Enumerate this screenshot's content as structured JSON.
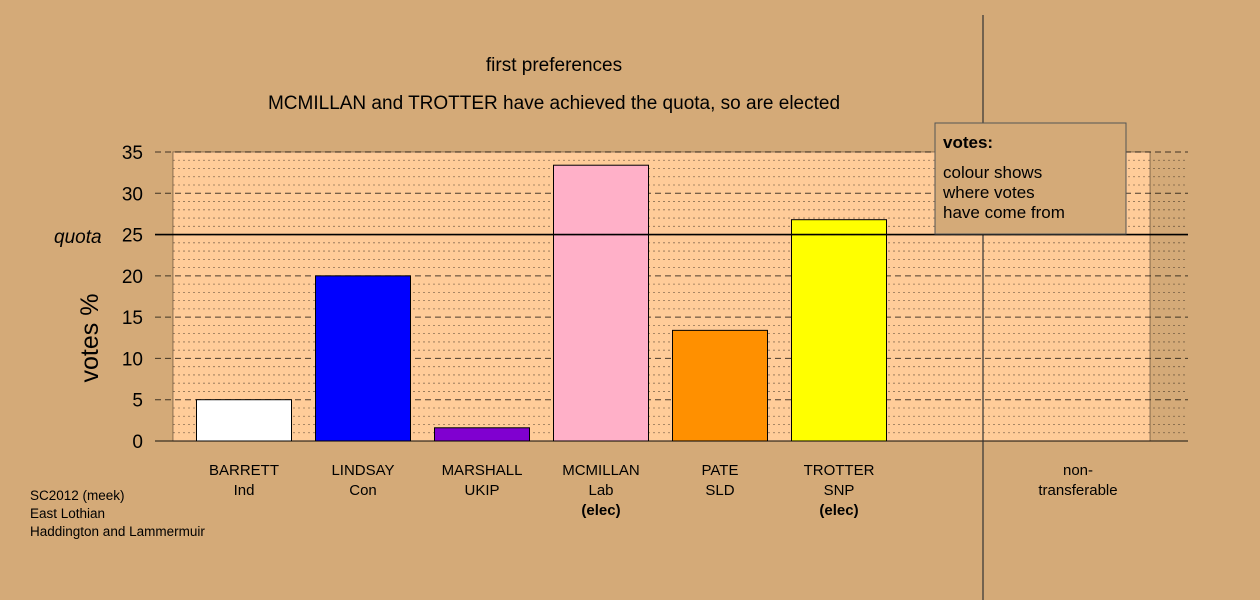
{
  "chart_data": {
    "type": "bar",
    "title": "first preferences",
    "subtitle": "MCMILLAN and TROTTER have achieved the quota, so are elected",
    "ylabel": "votes %",
    "ylim": [
      0,
      35
    ],
    "yticks": [
      0,
      5,
      10,
      15,
      20,
      25,
      30,
      35
    ],
    "quota": {
      "label": "quota",
      "value": 25
    },
    "categories": [
      {
        "name": "BARRETT",
        "party": "Ind",
        "note": "",
        "value": 5.0,
        "color": "#ffffff"
      },
      {
        "name": "LINDSAY",
        "party": "Con",
        "note": "",
        "value": 20.0,
        "color": "#0000ff"
      },
      {
        "name": "MARSHALL",
        "party": "UKIP",
        "note": "",
        "value": 1.6,
        "color": "#8000d0"
      },
      {
        "name": "MCMILLAN",
        "party": "Lab",
        "note": "(elec)",
        "value": 33.4,
        "color": "#ffb0c8"
      },
      {
        "name": "PATE",
        "party": "SLD",
        "note": "",
        "value": 13.4,
        "color": "#ff9000"
      },
      {
        "name": "TROTTER",
        "party": "SNP",
        "note": "(elec)",
        "value": 26.8,
        "color": "#ffff00"
      }
    ],
    "nontransferable": {
      "label_line1": "non-",
      "label_line2": "transferable",
      "value": 0
    },
    "legend": {
      "title": "votes:",
      "lines": [
        "colour shows",
        "where votes",
        "have come from"
      ],
      "placement": "top-right"
    },
    "grid": true
  },
  "colors": {
    "background": "#d4aa78",
    "plot_area": "#ffcc99"
  },
  "footer": {
    "line1": "SC2012 (meek)",
    "line2": "East Lothian",
    "line3": "Haddington and Lammermuir"
  }
}
